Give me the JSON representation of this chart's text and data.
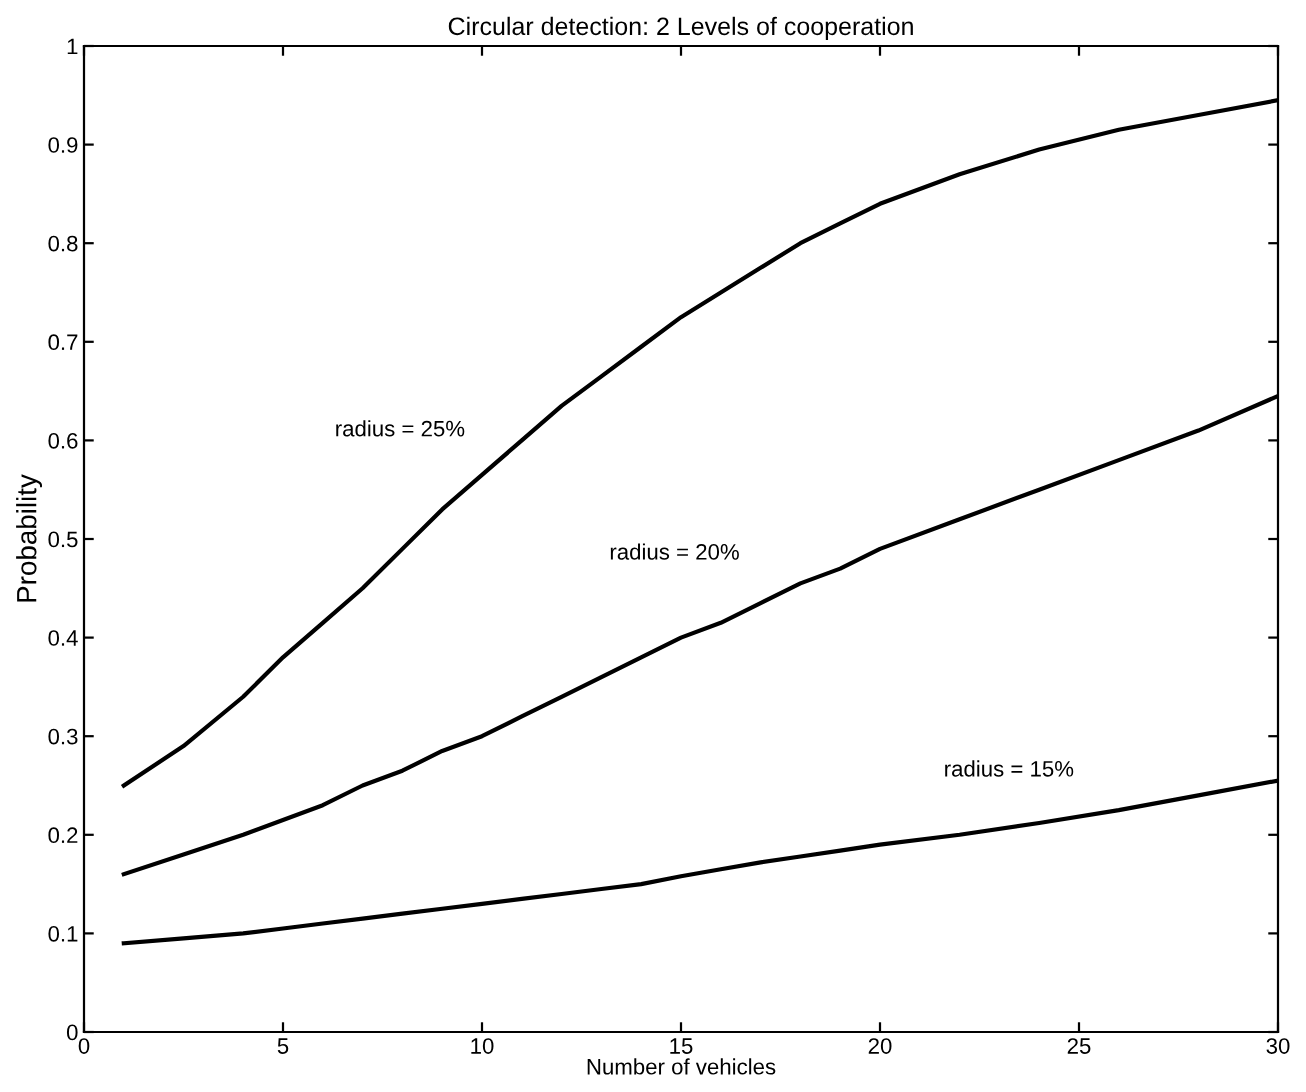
{
  "chart_data": {
    "type": "line",
    "title": "Circular detection: 2 Levels of cooperation",
    "xlabel": "Number of vehicles",
    "ylabel": "Probability",
    "x": [
      1,
      2.5,
      4,
      5,
      6,
      7,
      8,
      9,
      10,
      11,
      12,
      13,
      14,
      15,
      16,
      17,
      18,
      19,
      20,
      22,
      24,
      26,
      28,
      30
    ],
    "series": [
      {
        "name": "radius = 25%",
        "color": "#000000",
        "values": [
          0.25,
          0.29,
          0.34,
          0.38,
          0.415,
          0.45,
          0.49,
          0.53,
          0.565,
          0.6,
          0.635,
          0.665,
          0.695,
          0.725,
          0.75,
          0.775,
          0.8,
          0.82,
          0.84,
          0.87,
          0.895,
          0.915,
          0.93,
          0.945
        ]
      },
      {
        "name": "radius = 20%",
        "color": "#000000",
        "values": [
          0.16,
          0.18,
          0.2,
          0.215,
          0.23,
          0.25,
          0.265,
          0.285,
          0.3,
          0.32,
          0.34,
          0.36,
          0.38,
          0.4,
          0.415,
          0.435,
          0.455,
          0.47,
          0.49,
          0.52,
          0.55,
          0.58,
          0.61,
          0.645
        ]
      },
      {
        "name": "radius = 15%",
        "color": "#000000",
        "values": [
          0.09,
          0.095,
          0.1,
          0.105,
          0.11,
          0.115,
          0.12,
          0.125,
          0.13,
          0.135,
          0.14,
          0.145,
          0.15,
          0.158,
          0.165,
          0.172,
          0.178,
          0.184,
          0.19,
          0.2,
          0.212,
          0.225,
          0.24,
          0.255
        ]
      }
    ],
    "xlim": [
      0,
      30
    ],
    "ylim": [
      0,
      1
    ],
    "xticks": [
      0,
      5,
      10,
      15,
      20,
      25,
      30
    ],
    "yticks": [
      0,
      0.1,
      0.2,
      0.3,
      0.4,
      0.5,
      0.6,
      0.7,
      0.8,
      0.9,
      1
    ],
    "grid": false,
    "legend": false,
    "line_style": "solid",
    "marker": "none"
  }
}
